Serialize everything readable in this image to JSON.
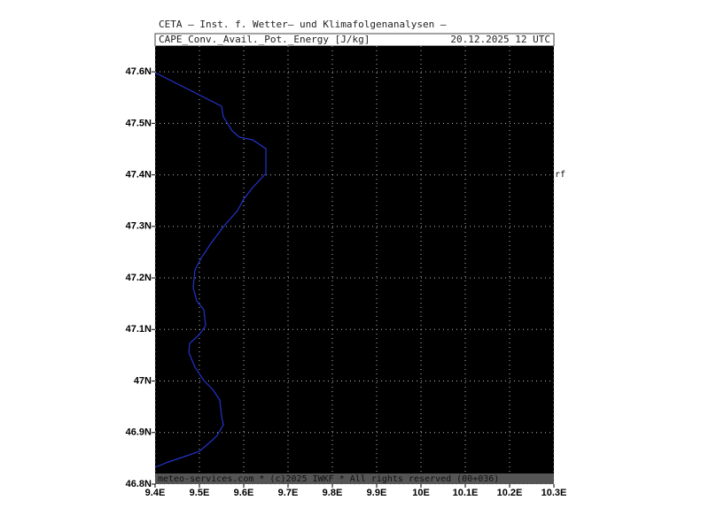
{
  "header": {
    "title": "CETA — Inst. f. Wetter— und Klimafolgenanalysen —",
    "field": "CAPE_Conv._Avail._Pot._Energy [J/kg]",
    "valid_time": "20.12.2025 12 UTC"
  },
  "map": {
    "lon_lim": [
      9.4,
      10.3
    ],
    "lat_lim": [
      46.8,
      47.65
    ],
    "lon_ticks": [
      {
        "value": 9.4,
        "label": "9.4E"
      },
      {
        "value": 9.5,
        "label": "9.5E"
      },
      {
        "value": 9.6,
        "label": "9.6E"
      },
      {
        "value": 9.7,
        "label": "9.7E"
      },
      {
        "value": 9.8,
        "label": "9.8E"
      },
      {
        "value": 9.9,
        "label": "9.9E"
      },
      {
        "value": 10,
        "label": "10E"
      },
      {
        "value": 10.1,
        "label": "10.1E"
      },
      {
        "value": 10.2,
        "label": "10.2E"
      },
      {
        "value": 10.3,
        "label": "10.3E"
      }
    ],
    "lat_ticks": [
      {
        "value": 46.8,
        "label": "46.8N"
      },
      {
        "value": 46.9,
        "label": "46.9N"
      },
      {
        "value": 47,
        "label": "47N"
      },
      {
        "value": 47.1,
        "label": "47.1N"
      },
      {
        "value": 47.2,
        "label": "47.2N"
      },
      {
        "value": 47.3,
        "label": "47.3N"
      },
      {
        "value": 47.4,
        "label": "47.4N"
      },
      {
        "value": 47.5,
        "label": "47.5N"
      },
      {
        "value": 47.6,
        "label": "47.6N"
      }
    ],
    "edge_label": "rf"
  },
  "footer": "meteo-services.com * (c)2025 IWKF * All rights reserved (00+036)"
}
